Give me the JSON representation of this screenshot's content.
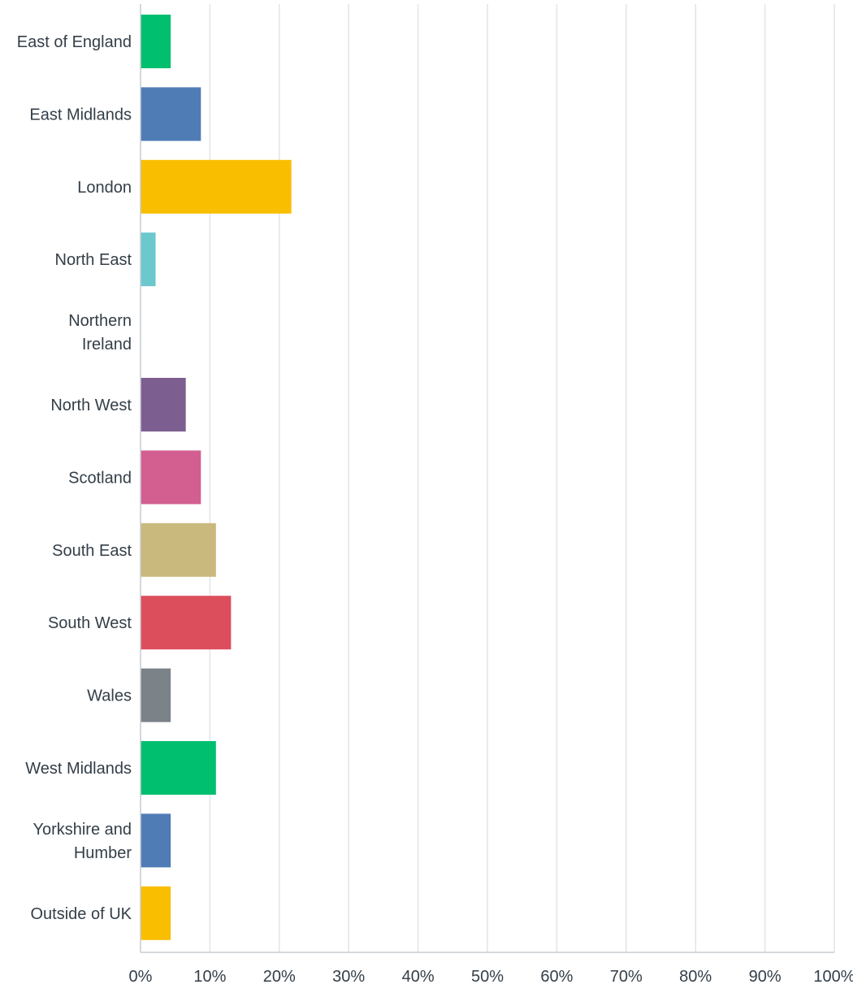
{
  "chart_data": {
    "type": "bar",
    "orientation": "horizontal",
    "categories": [
      "East of England",
      "East Midlands",
      "London",
      "North East",
      "Northern Ireland",
      "North West",
      "Scotland",
      "South East",
      "South West",
      "Wales",
      "West Midlands",
      "Yorkshire and Humber",
      "Outside of UK"
    ],
    "category_label_lines": [
      [
        "East of England"
      ],
      [
        "East Midlands"
      ],
      [
        "London"
      ],
      [
        "North East"
      ],
      [
        "Northern",
        "Ireland"
      ],
      [
        "North West"
      ],
      [
        "Scotland"
      ],
      [
        "South East"
      ],
      [
        "South West"
      ],
      [
        "Wales"
      ],
      [
        "West Midlands"
      ],
      [
        "Yorkshire and",
        "Humber"
      ],
      [
        "Outside of UK"
      ]
    ],
    "values": [
      4.35,
      8.7,
      21.74,
      2.17,
      0,
      6.52,
      8.7,
      10.87,
      13.04,
      4.35,
      10.87,
      4.35,
      4.35
    ],
    "colors": [
      "#00bf6f",
      "#507cb6",
      "#f9be00",
      "#6bc8cd",
      "#ffffff",
      "#7d5e90",
      "#d25f90",
      "#c9b97d",
      "#dc4e5c",
      "#7b8288",
      "#00bf6f",
      "#507cb6",
      "#f9be00"
    ],
    "xlim": [
      0,
      100
    ],
    "ticks": [
      0,
      10,
      20,
      30,
      40,
      50,
      60,
      70,
      80,
      90,
      100
    ],
    "tick_labels": [
      "0%",
      "10%",
      "20%",
      "30%",
      "40%",
      "50%",
      "60%",
      "70%",
      "80%",
      "90%",
      "100%"
    ],
    "grid": true,
    "legend": "none",
    "title": "",
    "xlabel": "",
    "ylabel": ""
  }
}
